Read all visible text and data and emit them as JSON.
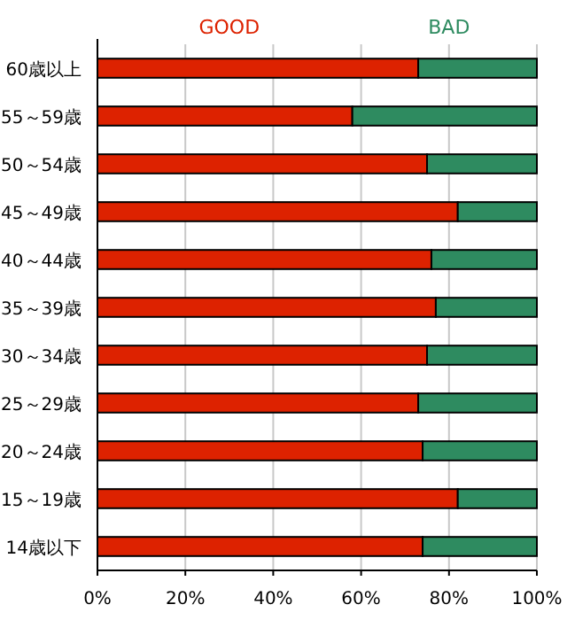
{
  "chart_data": {
    "type": "bar",
    "orientation": "horizontal",
    "stacked": true,
    "categories": [
      "60歳以上",
      "55～59歳",
      "50～54歳",
      "45～49歳",
      "40～44歳",
      "35～39歳",
      "30～34歳",
      "25～29歳",
      "20～24歳",
      "15～19歳",
      "14歳以下"
    ],
    "series": [
      {
        "name": "GOOD",
        "color": "#dd2200",
        "values": [
          73,
          58,
          75,
          82,
          76,
          77,
          75,
          73,
          74,
          82,
          74
        ]
      },
      {
        "name": "BAD",
        "color": "#2e8b60",
        "values": [
          27,
          42,
          25,
          18,
          24,
          23,
          25,
          27,
          26,
          18,
          26
        ]
      }
    ],
    "xlim": [
      0,
      100
    ],
    "xticks": [
      {
        "value": 0,
        "label": "0%"
      },
      {
        "value": 20,
        "label": "20%"
      },
      {
        "value": 40,
        "label": "40%"
      },
      {
        "value": 60,
        "label": "60%"
      },
      {
        "value": 80,
        "label": "80%"
      },
      {
        "value": 100,
        "label": "100%"
      }
    ],
    "grid": "x",
    "legend": "top"
  }
}
